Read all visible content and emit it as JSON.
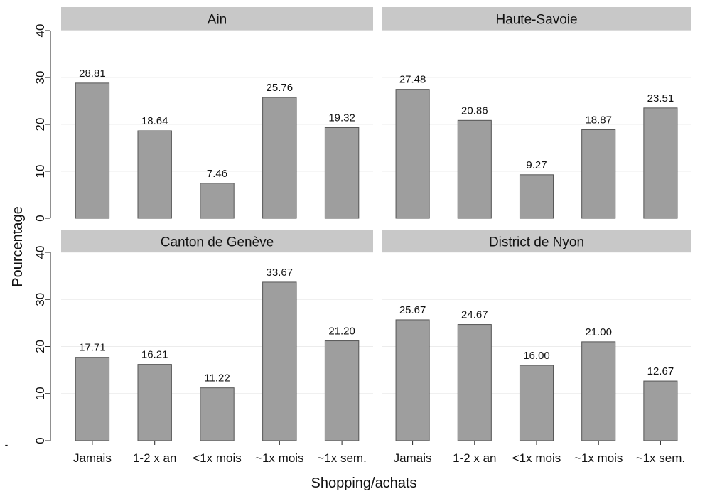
{
  "chart_data": {
    "type": "bar",
    "ylabel": "Pourcentage",
    "xlabel": "Shopping/achats",
    "ylim": [
      0,
      40
    ],
    "yticks": [
      "0",
      "10",
      "20",
      "30",
      "40"
    ],
    "categories_left": [
      "Jamais",
      "1-2 x an",
      "<1x mois",
      "~1x mois",
      "~1x sem."
    ],
    "categories_right": [
      "Jamais",
      "1-2 x an",
      "<1x mois",
      "~1x mois",
      "~1x sem."
    ],
    "bar_color": "#9e9e9e",
    "panel_header_color": "#c8c8c8",
    "grid": true,
    "panels": [
      {
        "title": "Ain",
        "values": [
          28.81,
          18.64,
          7.46,
          25.76,
          19.32
        ],
        "labels": [
          "28.81",
          "18.64",
          "7.46",
          "25.76",
          "19.32"
        ]
      },
      {
        "title": "Haute-Savoie",
        "values": [
          27.48,
          20.86,
          9.27,
          18.87,
          23.51
        ],
        "labels": [
          "27.48",
          "20.86",
          "9.27",
          "18.87",
          "23.51"
        ]
      },
      {
        "title": "Canton de Genève",
        "values": [
          17.71,
          16.21,
          11.22,
          33.67,
          21.2
        ],
        "labels": [
          "17.71",
          "16.21",
          "11.22",
          "33.67",
          "21.20"
        ]
      },
      {
        "title": "District de Nyon",
        "values": [
          25.67,
          24.67,
          16.0,
          21.0,
          12.67
        ],
        "labels": [
          "25.67",
          "24.67",
          "16.00",
          "21.00",
          "12.67"
        ]
      }
    ],
    "stray_mark": "-"
  }
}
